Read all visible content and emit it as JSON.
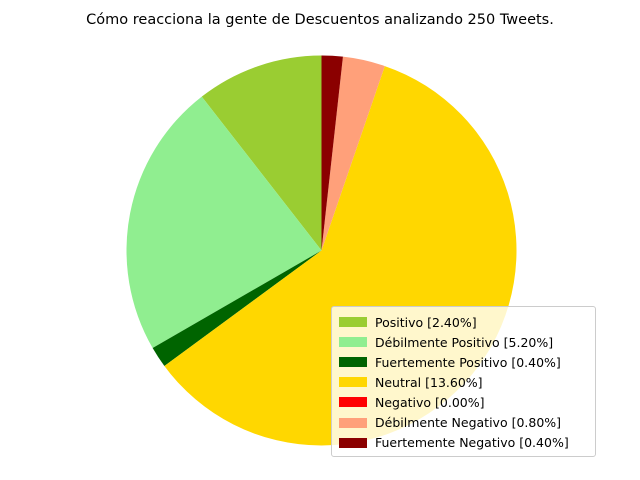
{
  "chart_data": {
    "type": "pie",
    "title": "Cómo reacciona la gente de Descuentos analizando 250 Tweets.",
    "start_angle_deg": 90,
    "direction": "counterclockwise",
    "legend_position": "lower-right",
    "slices": [
      {
        "label": "Positivo [2.40%]",
        "value": 2.4,
        "color": "#9acd32"
      },
      {
        "label": "Débilmente Positivo [5.20%]",
        "value": 5.2,
        "color": "#90ee90"
      },
      {
        "label": "Fuertemente Positivo [0.40%]",
        "value": 0.4,
        "color": "#006400"
      },
      {
        "label": "Neutral [13.60%]",
        "value": 13.6,
        "color": "#ffd700"
      },
      {
        "label": "Negativo [0.00%]",
        "value": 0.0,
        "color": "#ff0000"
      },
      {
        "label": "Débilmente Negativo [0.80%]",
        "value": 0.8,
        "color": "#ffa07a"
      },
      {
        "label": "Fuertemente Negativo [0.40%]",
        "value": 0.4,
        "color": "#8b0000"
      }
    ]
  }
}
